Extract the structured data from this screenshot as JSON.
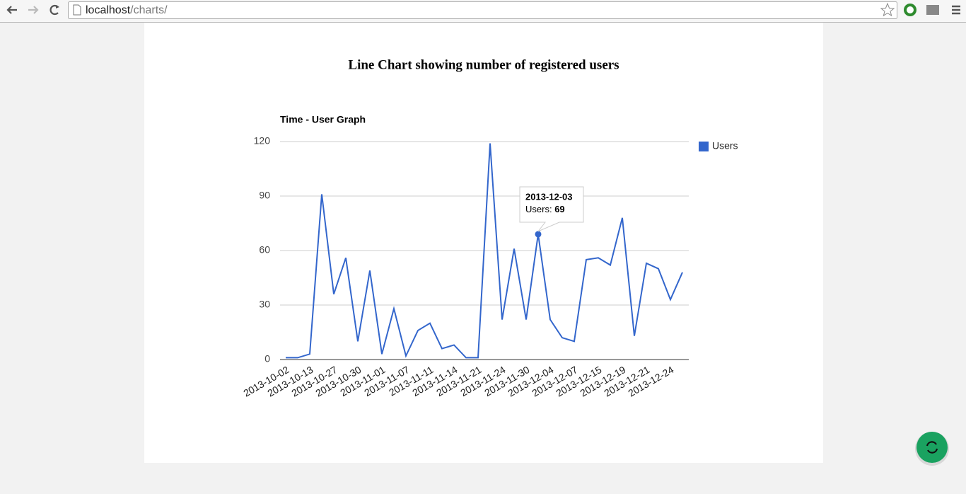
{
  "browser": {
    "url": {
      "host": "localhost",
      "path": "/charts/"
    }
  },
  "page": {
    "heading": "Line Chart showing number of registered users"
  },
  "chart_data": {
    "type": "line",
    "title": "Time - User Graph",
    "categories": [
      "2013-10-02",
      null,
      "2013-10-13",
      null,
      "2013-10-27",
      null,
      "2013-10-30",
      null,
      "2013-11-01",
      null,
      "2013-11-07",
      null,
      "2013-11-11",
      null,
      "2013-11-14",
      null,
      "2013-11-21",
      null,
      "2013-11-24",
      null,
      "2013-11-30",
      "2013-12-03",
      "2013-12-04",
      null,
      "2013-12-07",
      null,
      "2013-12-15",
      null,
      "2013-12-19",
      null,
      "2013-12-21",
      null,
      "2013-12-24",
      null
    ],
    "series": [
      {
        "name": "Users",
        "color": "#3366cc",
        "values": [
          1,
          1,
          3,
          91,
          36,
          56,
          10,
          49,
          3,
          28,
          2,
          16,
          20,
          6,
          8,
          1,
          1,
          119,
          22,
          61,
          22,
          69,
          22,
          12,
          10,
          55,
          56,
          52,
          78,
          13,
          53,
          50,
          33,
          48
        ]
      }
    ],
    "ylim": [
      0,
      120
    ],
    "yticks": [
      0,
      30,
      60,
      90,
      120
    ],
    "grid": true,
    "legend": "right",
    "tooltip": {
      "index": 21
    }
  }
}
